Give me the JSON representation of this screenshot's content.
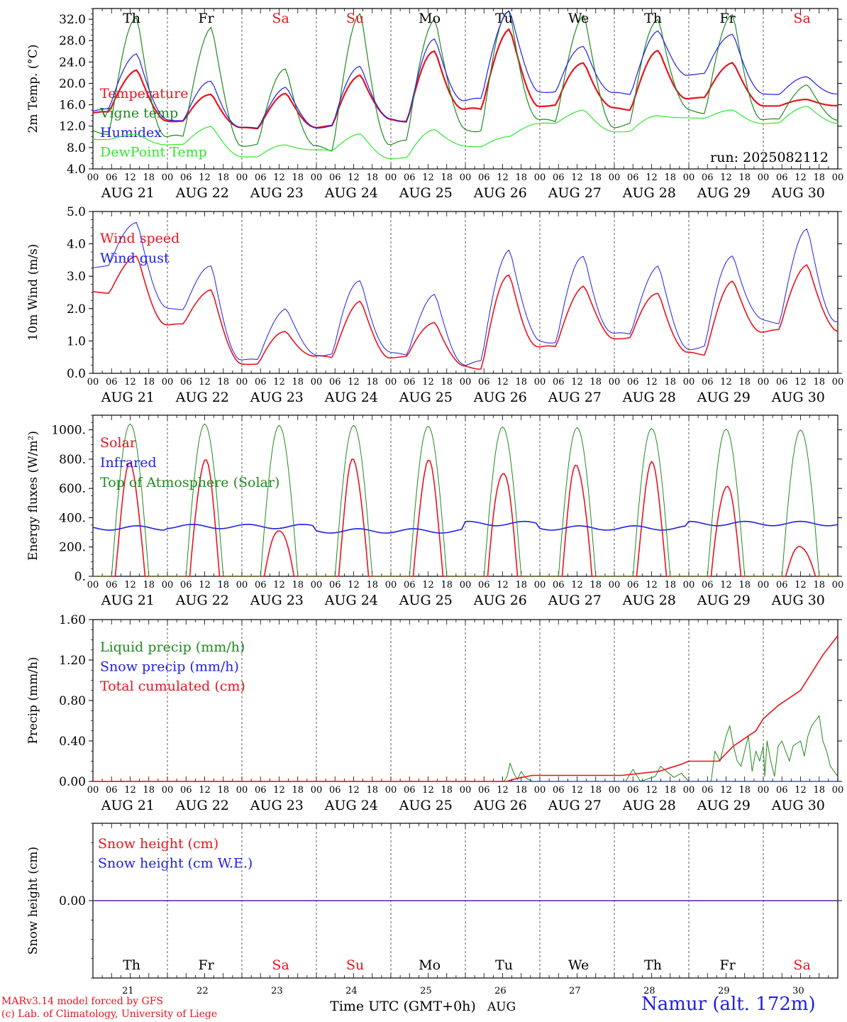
{
  "run_label": "run: 2025082112",
  "day_letters": [
    "Th",
    "Fr",
    "Sa",
    "Su",
    "Mo",
    "Tu",
    "We",
    "Th",
    "Fr",
    "Sa"
  ],
  "weekend_flags": [
    false,
    false,
    true,
    true,
    false,
    false,
    false,
    false,
    false,
    true
  ],
  "day_numbers": [
    "21",
    "22",
    "23",
    "24",
    "25",
    "26",
    "27",
    "28",
    "29",
    "30"
  ],
  "date_labels": [
    "AUG 21",
    "AUG 22",
    "AUG 23",
    "AUG 24",
    "AUG 25",
    "AUG 26",
    "AUG 27",
    "AUG 28",
    "AUG 29",
    "AUG 30"
  ],
  "hour_ticks": [
    "00",
    "06",
    "12",
    "18"
  ],
  "x_axis_title": "Time UTC (GMT+0h)",
  "x_axis_month": "AUG",
  "credit_line1": "MARv3.14 model forced by GFS",
  "credit_line2": "(c) Lab. of Climatology, University of Liege",
  "location": "Namur (alt. 172m)",
  "colors": {
    "red": "#e8141e",
    "green": "#1f8a1f",
    "blue": "#1f1fe8",
    "light_green": "#2ee82e",
    "axis": "#000000"
  },
  "chart_data": [
    {
      "type": "line",
      "ylabel": "2m Temp. (°C)",
      "ylim": [
        4,
        34
      ],
      "ytick_values": [
        4,
        8,
        12,
        16,
        20,
        24,
        28,
        32
      ],
      "ytick_labels": [
        "4.0",
        "8.0",
        "12.0",
        "16.0",
        "20.0",
        "24.0",
        "28.0",
        "32.0"
      ],
      "series": [
        {
          "name": "Temperature",
          "color": "#e8141e",
          "width": 2.2,
          "days_max": [
            22.6,
            18.0,
            18.0,
            21.8,
            25.9,
            30.1,
            24.0,
            25.9,
            24.0,
            17.0
          ],
          "days_min": [
            14.5,
            13.0,
            11.6,
            11.9,
            13.2,
            15.0,
            15.9,
            15.2,
            17.2,
            15.8
          ]
        },
        {
          "name": "Vigne temp",
          "color": "#1f8a1f",
          "width": 1.2,
          "days_max": [
            32.0,
            30.5,
            23.0,
            32.5,
            32.5,
            33.5,
            32.5,
            32.5,
            32.5,
            19.8
          ],
          "days_min": [
            11.0,
            9.8,
            8.6,
            7.8,
            8.8,
            11.5,
            12.8,
            12.2,
            14.8,
            13.2
          ]
        },
        {
          "name": "Humidex",
          "color": "#1f1fe8",
          "width": 1.2,
          "days_max": [
            25.8,
            20.4,
            19.2,
            23.5,
            28.0,
            33.8,
            27.0,
            29.6,
            29.4,
            21.2
          ],
          "days_min": [
            15.0,
            13.2,
            11.6,
            11.9,
            13.1,
            16.8,
            18.5,
            18.0,
            21.7,
            18.0
          ]
        },
        {
          "name": "DewPoint Temp",
          "color": "#2ee82e",
          "width": 1.2,
          "days_max": [
            10.5,
            12.0,
            8.5,
            10.5,
            11.5,
            10.0,
            15.0,
            14.0,
            15.0,
            15.8
          ],
          "days_min": [
            9.5,
            8.5,
            6.3,
            7.5,
            6.0,
            8.2,
            12.5,
            11.0,
            13.5,
            12.5
          ]
        }
      ]
    },
    {
      "type": "line",
      "ylabel": "10m Wind (m/s)",
      "ylim": [
        0,
        5
      ],
      "ytick_values": [
        0,
        1,
        2,
        3,
        4,
        5
      ],
      "ytick_labels": [
        "0.0",
        "1.0",
        "2.0",
        "3.0",
        "4.0",
        "5.0"
      ],
      "series": [
        {
          "name": "Wind speed",
          "color": "#e8141e",
          "width": 1.6,
          "days_max": [
            3.6,
            2.6,
            1.3,
            2.2,
            1.6,
            3.0,
            2.7,
            2.5,
            2.8,
            3.4
          ],
          "days_min": [
            2.5,
            1.5,
            0.3,
            0.5,
            0.5,
            0.2,
            0.8,
            1.1,
            0.6,
            1.3
          ]
        },
        {
          "name": "Wind gust",
          "color": "#1f1fe8",
          "width": 1.0,
          "days_max": [
            4.7,
            3.3,
            2.0,
            2.9,
            2.4,
            3.9,
            3.6,
            3.3,
            3.7,
            4.4
          ],
          "days_min": [
            3.3,
            2.0,
            0.4,
            0.6,
            0.6,
            0.3,
            1.0,
            1.2,
            0.8,
            1.6
          ]
        }
      ]
    },
    {
      "type": "line",
      "ylabel": "Energy fluxes (W/m²)",
      "ylim": [
        0,
        1100
      ],
      "ytick_values": [
        0,
        200,
        400,
        600,
        800,
        1000
      ],
      "ytick_labels": [
        "0.",
        "200.",
        "400.",
        "600.",
        "800.",
        "1000."
      ],
      "series": [
        {
          "name": "Solar",
          "color": "#e8141e",
          "width": 1.6,
          "days_max": [
            740,
            780,
            330,
            780,
            760,
            740,
            760,
            740,
            630,
            210
          ]
        },
        {
          "name": "Infrared",
          "color": "#1f1fe8",
          "width": 1.6,
          "days_levels": [
            330,
            340,
            340,
            310,
            310,
            360,
            330,
            330,
            360,
            360
          ]
        },
        {
          "name": "Top of Atmosphere (Solar)",
          "color": "#1f8a1f",
          "width": 1.0,
          "days_max": [
            1040,
            1040,
            1030,
            1030,
            1025,
            1020,
            1015,
            1010,
            1005,
            1000
          ]
        }
      ]
    },
    {
      "type": "line",
      "ylabel": "Precip (mm/h)",
      "ylim": [
        0,
        1.6
      ],
      "ytick_values": [
        0,
        0.4,
        0.8,
        1.2,
        1.6
      ],
      "ytick_labels": [
        "0.00",
        "0.40",
        "0.80",
        "1.20",
        "1.60"
      ],
      "series": [
        {
          "name": "Liquid precip (mm/h)",
          "color": "#1f8a1f",
          "width": 1.0,
          "x": [
            5.52,
            5.56,
            5.6,
            5.65,
            5.7,
            5.75,
            5.8,
            5.9,
            7.15,
            7.25,
            7.35,
            7.55,
            7.62,
            7.7,
            7.8,
            7.9,
            8.0,
            8.3,
            8.35,
            8.42,
            8.5,
            8.55,
            8.6,
            8.65,
            8.7,
            8.75,
            8.8,
            8.85,
            8.9,
            8.95,
            9.0,
            9.02,
            9.05,
            9.1,
            9.15,
            9.2,
            9.25,
            9.3,
            9.35,
            9.4,
            9.5,
            9.55,
            9.6,
            9.65,
            9.7,
            9.75,
            9.8,
            9.85,
            9.9,
            9.95,
            10.0
          ],
          "y": [
            0,
            0.05,
            0.18,
            0.08,
            0.02,
            0.1,
            0.04,
            0,
            0,
            0.12,
            0,
            0.05,
            0.15,
            0.1,
            0.04,
            0.08,
            0,
            0,
            0.3,
            0.2,
            0.45,
            0.55,
            0.35,
            0.2,
            0.15,
            0.3,
            0.45,
            0.1,
            0.3,
            0.2,
            0.35,
            0.05,
            0.4,
            0.2,
            0.05,
            0.35,
            0.4,
            0.3,
            0.2,
            0.35,
            0.4,
            0.25,
            0.45,
            0.55,
            0.6,
            0.65,
            0.4,
            0.3,
            0.15,
            0.1,
            0.05
          ]
        },
        {
          "name": "Snow precip (mm/h)",
          "color": "#1f1fe8",
          "width": 1.0,
          "x": [
            0,
            10
          ],
          "y": [
            0,
            0
          ]
        },
        {
          "name": "Total cumulated (cm)",
          "color": "#e8141e",
          "width": 1.6,
          "x": [
            0,
            5.55,
            5.7,
            5.9,
            7.1,
            7.6,
            7.9,
            8.0,
            8.4,
            8.6,
            8.9,
            9.0,
            9.2,
            9.5,
            9.8,
            10.0
          ],
          "y": [
            0,
            0,
            0.03,
            0.06,
            0.06,
            0.1,
            0.17,
            0.2,
            0.2,
            0.35,
            0.5,
            0.62,
            0.75,
            0.9,
            1.25,
            1.44
          ]
        }
      ]
    },
    {
      "type": "line",
      "ylabel": "Snow height (cm)",
      "ylim": [
        -1,
        1
      ],
      "ytick_values": [
        0
      ],
      "ytick_labels": [
        "0.00"
      ],
      "series": [
        {
          "name": "Snow height (cm)",
          "color": "#e8141e",
          "width": 1.4,
          "x": [
            0,
            10
          ],
          "y": [
            0,
            0
          ]
        },
        {
          "name": "Snow height (cm W.E.)",
          "color": "#1f1fe8",
          "width": 1.0,
          "x": [
            0,
            10
          ],
          "y": [
            0,
            0
          ]
        }
      ]
    }
  ]
}
